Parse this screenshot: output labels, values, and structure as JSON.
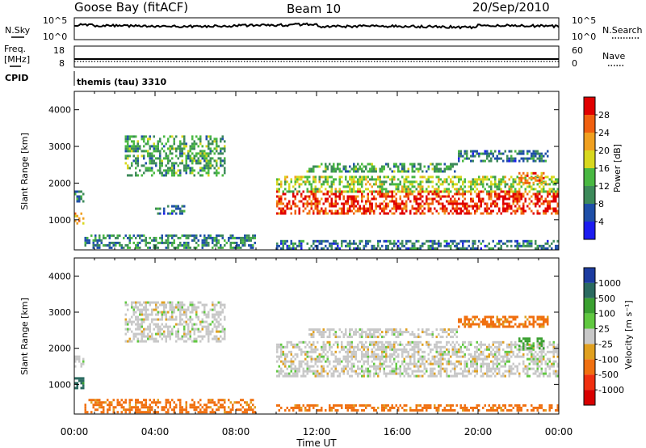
{
  "header": {
    "station": "Goose Bay (fitACF)",
    "beam": "Beam 10",
    "date": "20/Sep/2010"
  },
  "noise_panel": {
    "left_label": "N.Sky",
    "right_label": "N.Search",
    "left_ticks": [
      "10^5",
      "10^0"
    ],
    "right_ticks": [
      "10^5",
      "10^0"
    ]
  },
  "freq_panel": {
    "left_label_line1": "Freq.",
    "left_label_line2": "[MHz]",
    "right_label": "Nave",
    "left_ticks": [
      "18",
      "8"
    ],
    "right_ticks": [
      "60",
      "0"
    ]
  },
  "cpid": {
    "label": "CPID",
    "value": "themis (tau) 3310"
  },
  "power_panel": {
    "ylabel": "Slant Range [km]",
    "yticks": [
      "4000",
      "3000",
      "2000",
      "1000"
    ],
    "colorbar_label": "Power [dB]",
    "colorbar_ticks": [
      "28",
      "24",
      "20",
      "16",
      "12",
      "8",
      "4"
    ],
    "colors": [
      "#1c1cf0",
      "#1f4fa8",
      "#3d8a5a",
      "#49b842",
      "#d8d81e",
      "#f0a020",
      "#f06010",
      "#e00000"
    ]
  },
  "velocity_panel": {
    "ylabel": "Slant Range [km]",
    "yticks": [
      "4000",
      "3000",
      "2000",
      "1000"
    ],
    "colorbar_label": "Velocity [m s⁻¹]",
    "colorbar_ticks": [
      "1000",
      "500",
      "100",
      "25",
      "-25",
      "-100",
      "-500",
      "-1000"
    ],
    "colors": [
      "#1c3ca0",
      "#2a6a60",
      "#3aa030",
      "#60c840",
      "#c8c8c8",
      "#e0a020",
      "#f07010",
      "#f03010",
      "#d80000"
    ]
  },
  "x_axis": {
    "ticks": [
      "00:00",
      "04:00",
      "08:00",
      "12:00",
      "16:00",
      "20:00",
      "00:00"
    ],
    "label": "Time UT"
  },
  "chart_data": [
    {
      "type": "heatmap",
      "title": "Power [dB]",
      "xlabel": "Time UT",
      "ylabel": "Slant Range [km]",
      "xlim": [
        "00:00",
        "24:00"
      ],
      "ylim": [
        180,
        4500
      ],
      "clim": [
        0,
        32
      ],
      "regions": [
        {
          "t_start": 0.0,
          "t_end": 0.5,
          "r_min": 900,
          "r_max": 1200,
          "value": 22
        },
        {
          "t_start": 0.0,
          "t_end": 0.5,
          "r_min": 1500,
          "r_max": 1800,
          "value": 8
        },
        {
          "t_start": 2.5,
          "t_end": 7.5,
          "r_min": 2200,
          "r_max": 3300,
          "value": 12
        },
        {
          "t_start": 4.0,
          "t_end": 5.5,
          "r_min": 1150,
          "r_max": 1400,
          "value": 8
        },
        {
          "t_start": 0.5,
          "t_end": 9.0,
          "r_min": 250,
          "r_max": 600,
          "value": 10
        },
        {
          "t_start": 10.0,
          "t_end": 24.0,
          "r_min": 1200,
          "r_max": 1800,
          "value": 28
        },
        {
          "t_start": 10.0,
          "t_end": 24.0,
          "r_min": 1800,
          "r_max": 2200,
          "value": 16
        },
        {
          "t_start": 11.5,
          "t_end": 19.0,
          "r_min": 2300,
          "r_max": 2550,
          "value": 12
        },
        {
          "t_start": 19.0,
          "t_end": 23.5,
          "r_min": 2600,
          "r_max": 2900,
          "value": 8
        },
        {
          "t_start": 22.0,
          "t_end": 23.3,
          "r_min": 2000,
          "r_max": 2300,
          "value": 24
        },
        {
          "t_start": 10.0,
          "t_end": 24.0,
          "r_min": 250,
          "r_max": 450,
          "value": 8
        }
      ]
    },
    {
      "type": "heatmap",
      "title": "Velocity [m s-1]",
      "xlabel": "Time UT",
      "ylabel": "Slant Range [km]",
      "xlim": [
        "00:00",
        "24:00"
      ],
      "ylim": [
        180,
        4500
      ],
      "clim": [
        -1000,
        1000
      ],
      "regions": [
        {
          "t_start": 0.0,
          "t_end": 0.5,
          "r_min": 900,
          "r_max": 1200,
          "value": 500
        },
        {
          "t_start": 0.0,
          "t_end": 0.5,
          "r_min": 1500,
          "r_max": 1800,
          "value": 0
        },
        {
          "t_start": 2.5,
          "t_end": 7.5,
          "r_min": 2200,
          "r_max": 3300,
          "value": 0
        },
        {
          "t_start": 0.5,
          "t_end": 9.0,
          "r_min": 250,
          "r_max": 600,
          "value": -100
        },
        {
          "t_start": 10.0,
          "t_end": 24.0,
          "r_min": 1200,
          "r_max": 1800,
          "value": 0
        },
        {
          "t_start": 10.0,
          "t_end": 24.0,
          "r_min": 1800,
          "r_max": 2200,
          "value": 0
        },
        {
          "t_start": 11.5,
          "t_end": 19.0,
          "r_min": 2300,
          "r_max": 2550,
          "value": 0
        },
        {
          "t_start": 19.0,
          "t_end": 23.5,
          "r_min": 2600,
          "r_max": 2900,
          "value": -100
        },
        {
          "t_start": 22.0,
          "t_end": 23.3,
          "r_min": 2000,
          "r_max": 2300,
          "value": 100
        },
        {
          "t_start": 10.0,
          "t_end": 24.0,
          "r_min": 250,
          "r_max": 450,
          "value": -100
        }
      ]
    }
  ]
}
